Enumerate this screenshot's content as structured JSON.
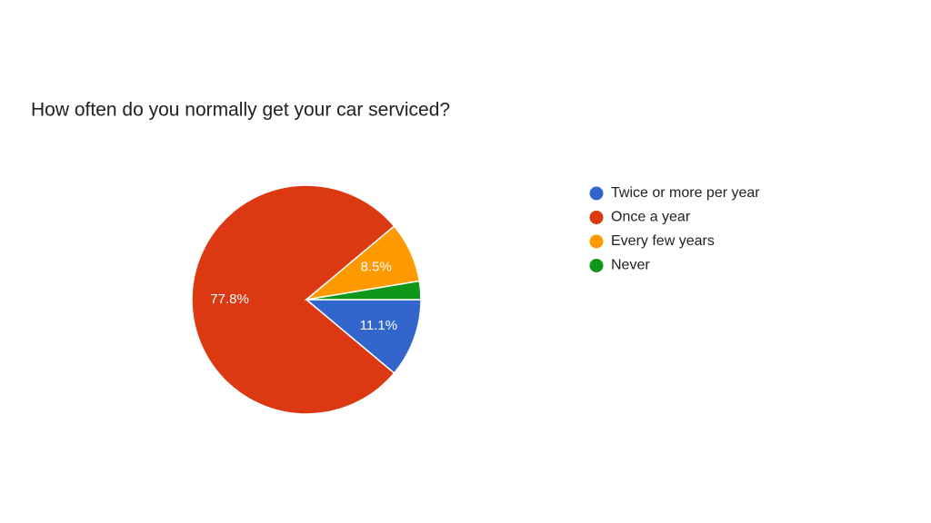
{
  "chart_data": {
    "type": "pie",
    "title": "How often do you normally get your car serviced?",
    "categories": [
      "Twice or more per year",
      "Once a year",
      "Every few years",
      "Never"
    ],
    "values": [
      11.1,
      77.8,
      8.5,
      2.6
    ],
    "value_labels": [
      "11.1%",
      "77.8%",
      "8.5%",
      null
    ],
    "colors": [
      "#3366cc",
      "#dc3912",
      "#ff9900",
      "#109618"
    ],
    "legend": "right"
  }
}
